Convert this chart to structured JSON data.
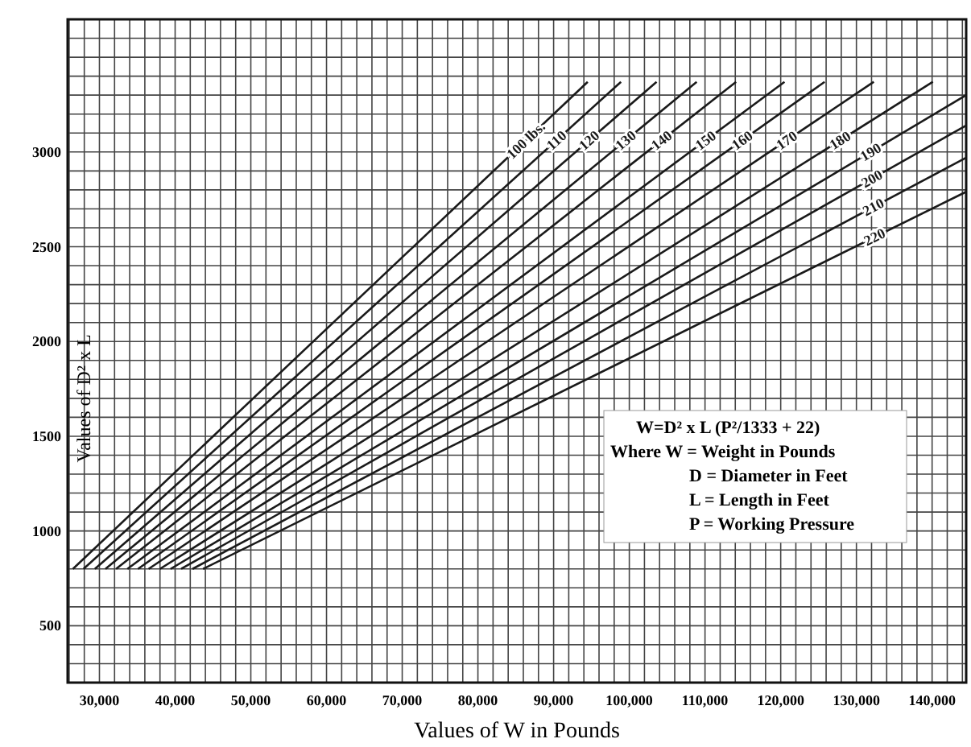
{
  "chart_data": {
    "type": "line",
    "xlabel": "Values of W in Pounds",
    "ylabel": "Values of D² x L",
    "xlim": [
      25800,
      144500
    ],
    "ylim": [
      200,
      3700
    ],
    "xticks": [
      {
        "value": 30000,
        "label": "30,000"
      },
      {
        "value": 40000,
        "label": "40,000"
      },
      {
        "value": 50000,
        "label": "50,000"
      },
      {
        "value": 60000,
        "label": "60,000"
      },
      {
        "value": 70000,
        "label": "70,000"
      },
      {
        "value": 80000,
        "label": "80,000"
      },
      {
        "value": 90000,
        "label": "90,000"
      },
      {
        "value": 100000,
        "label": "100,000"
      },
      {
        "value": 110000,
        "label": "110,000"
      },
      {
        "value": 120000,
        "label": "120,000"
      },
      {
        "value": 130000,
        "label": "130,000"
      },
      {
        "value": 140000,
        "label": "140,000"
      }
    ],
    "yticks": [
      500,
      1000,
      1500,
      2000,
      2500,
      3000
    ],
    "grid": true,
    "marker": "none",
    "line_style": "solid",
    "series": [
      {
        "name": "100 lbs.",
        "color": "#1a1a1a",
        "x": [
          26500,
          94500
        ],
        "values": [
          800,
          3370
        ]
      },
      {
        "name": "110",
        "color": "#1a1a1a",
        "x": [
          27900,
          98900
        ],
        "values": [
          800,
          3370
        ]
      },
      {
        "name": "120",
        "color": "#1a1a1a",
        "x": [
          29400,
          103600
        ],
        "values": [
          800,
          3370
        ]
      },
      {
        "name": "130",
        "color": "#1a1a1a",
        "x": [
          30800,
          108900
        ],
        "values": [
          800,
          3370
        ]
      },
      {
        "name": "140",
        "color": "#1a1a1a",
        "x": [
          32200,
          114100
        ],
        "values": [
          800,
          3370
        ]
      },
      {
        "name": "150",
        "color": "#1a1a1a",
        "x": [
          33700,
          120500
        ],
        "values": [
          800,
          3370
        ]
      },
      {
        "name": "160",
        "color": "#1a1a1a",
        "x": [
          35100,
          125800
        ],
        "values": [
          800,
          3370
        ]
      },
      {
        "name": "170",
        "color": "#1a1a1a",
        "x": [
          36500,
          132300
        ],
        "values": [
          800,
          3370
        ]
      },
      {
        "name": "180",
        "color": "#1a1a1a",
        "x": [
          38000,
          140100
        ],
        "values": [
          800,
          3370
        ]
      },
      {
        "name": "190",
        "color": "#1a1a1a",
        "x": [
          39400,
          144500
        ],
        "values": [
          800,
          3300
        ]
      },
      {
        "name": "200",
        "color": "#1a1a1a",
        "x": [
          40800,
          144500
        ],
        "values": [
          800,
          3140
        ]
      },
      {
        "name": "210",
        "color": "#1a1a1a",
        "x": [
          42300,
          144500
        ],
        "values": [
          800,
          2970
        ]
      },
      {
        "name": "220",
        "color": "#1a1a1a",
        "x": [
          43700,
          144500
        ],
        "values": [
          800,
          2790
        ]
      }
    ],
    "annotations": [
      "W=D² x L (P²/1333 + 22)",
      "Where W = Weight in Pounds",
      "D = Diameter in Feet",
      "L = Length in Feet",
      "P = Working Pressure"
    ]
  }
}
